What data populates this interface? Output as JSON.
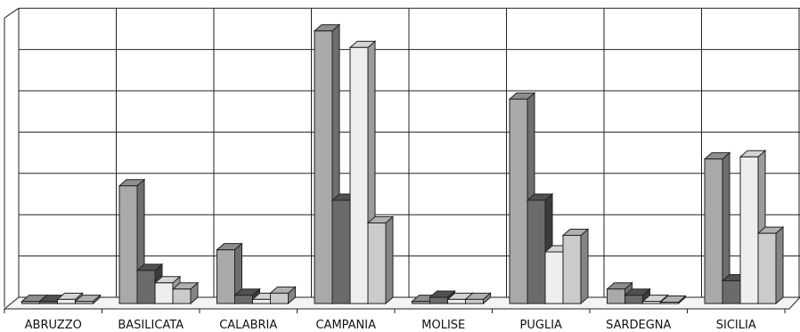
{
  "chart_data": {
    "type": "bar",
    "title": "",
    "xlabel": "",
    "ylabel": "",
    "categories": [
      "ABRUZZO",
      "BASILICATA",
      "CALABRIA",
      "CAMPANIA",
      "MOLISE",
      "PUGLIA",
      "SARDEGNA",
      "SICILIA"
    ],
    "ylim": [
      0,
      7
    ],
    "grid": true,
    "legend": "none",
    "series": [
      {
        "values": [
          0.05,
          2.85,
          1.3,
          6.6,
          0.05,
          4.95,
          0.35,
          3.5
        ]
      },
      {
        "values": [
          0.05,
          0.8,
          0.2,
          2.5,
          0.15,
          2.5,
          0.2,
          0.55
        ]
      },
      {
        "values": [
          0.1,
          0.5,
          0.1,
          6.2,
          0.1,
          1.25,
          0.05,
          3.55
        ]
      },
      {
        "values": [
          0.05,
          0.35,
          0.25,
          1.95,
          0.1,
          1.65,
          0.02,
          1.7
        ]
      }
    ],
    "colors": {
      "front": [
        "#a9a9a9",
        "#6b6b6b",
        "#eeeeee",
        "#cbcbcb"
      ],
      "side": [
        "#6e6e6e",
        "#3b3b3b",
        "#9c9c9c",
        "#858585"
      ],
      "top": [
        "#8d8d8d",
        "#505050",
        "#d4d4d4",
        "#b0b0b0"
      ]
    }
  }
}
